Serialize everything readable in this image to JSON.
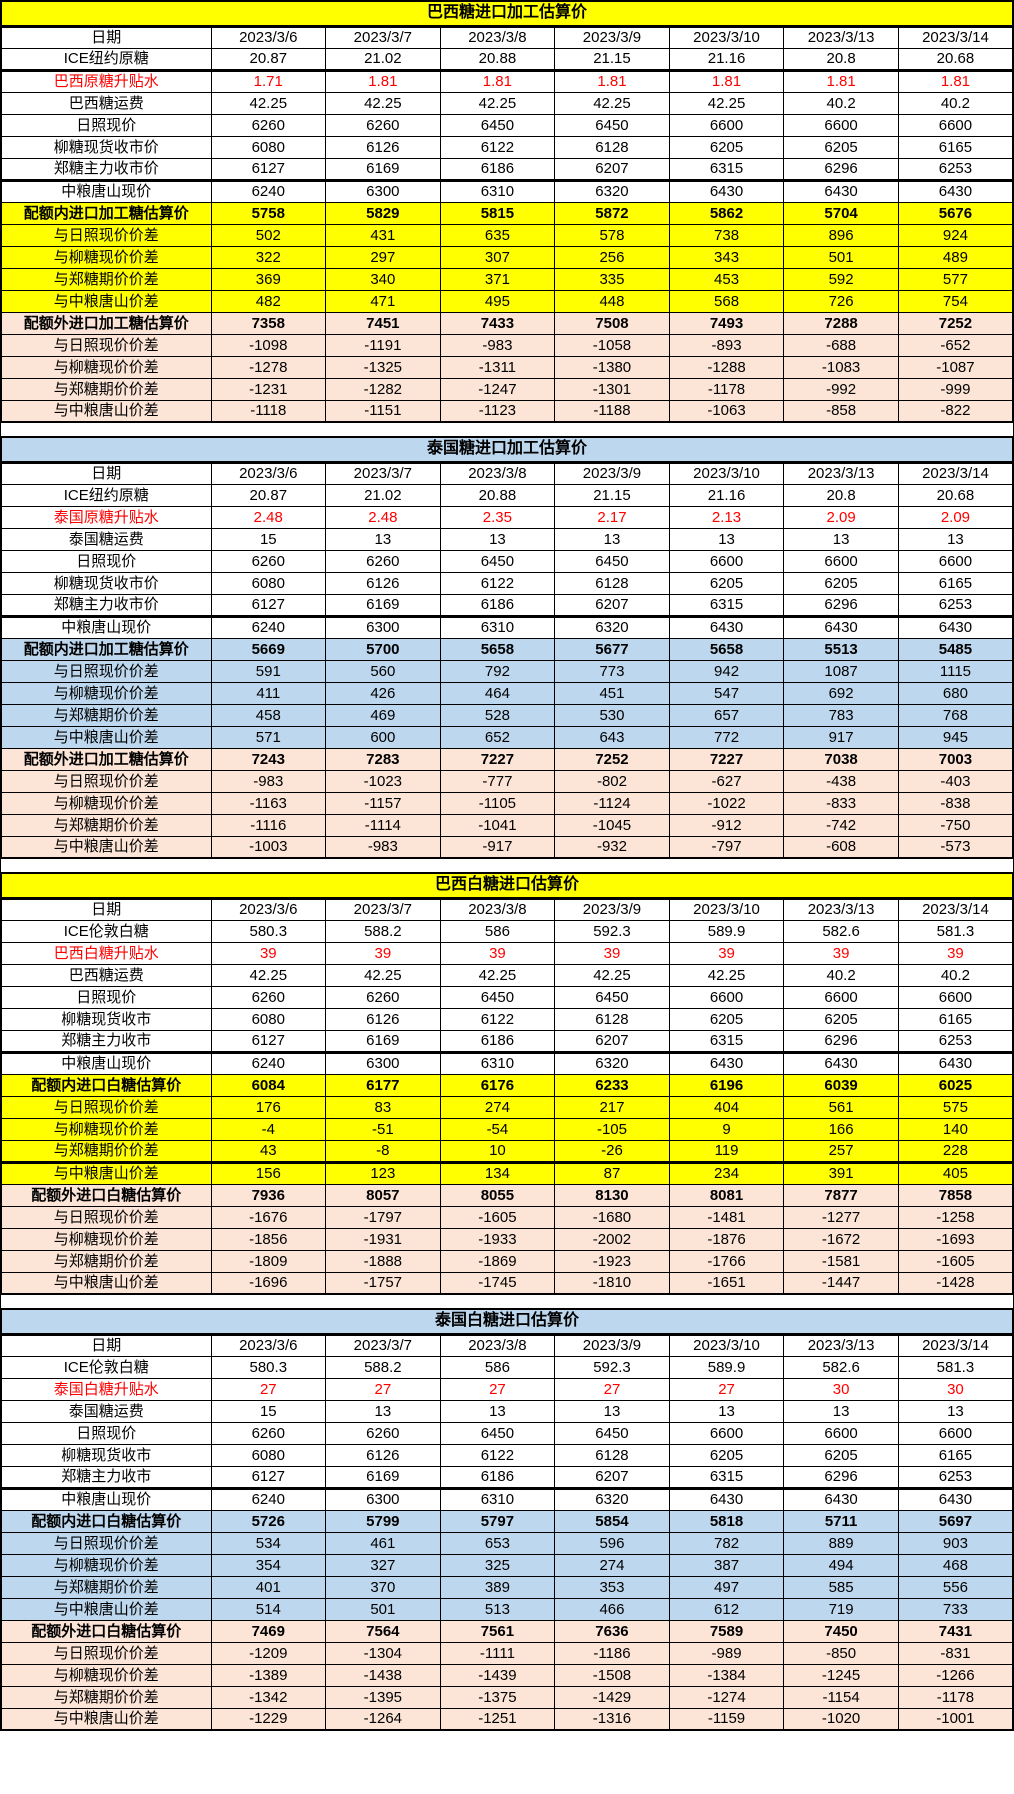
{
  "colors": {
    "title_yellow": "#FFFF00",
    "title_blue": "#BDD7EE",
    "quota_out_peach": "#FCE4D6",
    "premium_red": "#FF0000",
    "grid_black": "#000000",
    "background_white": "#FFFFFF"
  },
  "date_label": "日期",
  "dates": [
    "2023/3/6",
    "2023/3/7",
    "2023/3/8",
    "2023/3/9",
    "2023/3/10",
    "2023/3/13",
    "2023/3/14"
  ],
  "tables": [
    {
      "title": "巴西糖进口加工估算价",
      "theme": "yellow",
      "rows": [
        {
          "label": "ICE纽约原糖",
          "style": "plain",
          "values": [
            20.87,
            21.02,
            20.88,
            21.15,
            21.16,
            20.8,
            20.68
          ]
        },
        {
          "label": "巴西原糖升贴水",
          "style": "premium",
          "values": [
            1.71,
            1.81,
            1.81,
            1.81,
            1.81,
            1.81,
            1.81
          ]
        },
        {
          "label": "巴西糖运费",
          "style": "plain",
          "values": [
            42.25,
            42.25,
            42.25,
            42.25,
            42.25,
            40.2,
            40.2
          ]
        },
        {
          "label": "日照现价",
          "style": "plain",
          "values": [
            6260,
            6260,
            6450,
            6450,
            6600,
            6600,
            6600
          ]
        },
        {
          "label": "柳糖现货收市价",
          "style": "plain",
          "values": [
            6080,
            6126,
            6122,
            6128,
            6205,
            6205,
            6165
          ]
        },
        {
          "label": "郑糖主力收市价",
          "style": "plain",
          "values": [
            6127,
            6169,
            6186,
            6207,
            6315,
            6296,
            6253
          ]
        },
        {
          "label": "中粮唐山现价",
          "style": "plain",
          "values": [
            6240,
            6300,
            6310,
            6320,
            6430,
            6430,
            6430
          ]
        },
        {
          "label": "配额内进口加工糖估算价",
          "style": "quota-in-head",
          "values": [
            5758,
            5829,
            5815,
            5872,
            5862,
            5704,
            5676
          ]
        },
        {
          "label": "与日照现价价差",
          "style": "quota-in",
          "values": [
            502,
            431,
            635,
            578,
            738,
            896,
            924
          ]
        },
        {
          "label": "与柳糖现价价差",
          "style": "quota-in",
          "values": [
            322,
            297,
            307,
            256,
            343,
            501,
            489
          ]
        },
        {
          "label": "与郑糖期价价差",
          "style": "quota-in",
          "values": [
            369,
            340,
            371,
            335,
            453,
            592,
            577
          ]
        },
        {
          "label": "与中粮唐山价差",
          "style": "quota-in",
          "values": [
            482,
            471,
            495,
            448,
            568,
            726,
            754
          ]
        },
        {
          "label": "配额外进口加工糖估算价",
          "style": "quota-out-head",
          "values": [
            7358,
            7451,
            7433,
            7508,
            7493,
            7288,
            7252
          ]
        },
        {
          "label": "与日照现价价差",
          "style": "quota-out",
          "values": [
            -1098,
            -1191,
            -983,
            -1058,
            -893,
            -688,
            -652
          ]
        },
        {
          "label": "与柳糖现价价差",
          "style": "quota-out",
          "values": [
            -1278,
            -1325,
            -1311,
            -1380,
            -1288,
            -1083,
            -1087
          ]
        },
        {
          "label": "与郑糖期价价差",
          "style": "quota-out",
          "values": [
            -1231,
            -1282,
            -1247,
            -1301,
            -1178,
            -992,
            -999
          ]
        },
        {
          "label": "与中粮唐山价差",
          "style": "quota-out",
          "values": [
            -1118,
            -1151,
            -1123,
            -1188,
            -1063,
            -858,
            -822
          ]
        }
      ]
    },
    {
      "title": "泰国糖进口加工估算价",
      "theme": "blue",
      "rows": [
        {
          "label": "ICE纽约原糖",
          "style": "plain",
          "values": [
            20.87,
            21.02,
            20.88,
            21.15,
            21.16,
            20.8,
            20.68
          ]
        },
        {
          "label": "泰国原糖升贴水",
          "style": "premium",
          "values": [
            2.48,
            2.48,
            2.35,
            2.17,
            2.13,
            2.09,
            2.09
          ]
        },
        {
          "label": "泰国糖运费",
          "style": "plain",
          "values": [
            15,
            13,
            13,
            13,
            13,
            13,
            13
          ]
        },
        {
          "label": "日照现价",
          "style": "plain",
          "values": [
            6260,
            6260,
            6450,
            6450,
            6600,
            6600,
            6600
          ]
        },
        {
          "label": "柳糖现货收市价",
          "style": "plain",
          "values": [
            6080,
            6126,
            6122,
            6128,
            6205,
            6205,
            6165
          ]
        },
        {
          "label": "郑糖主力收市价",
          "style": "plain",
          "values": [
            6127,
            6169,
            6186,
            6207,
            6315,
            6296,
            6253
          ]
        },
        {
          "label": "中粮唐山现价",
          "style": "plain",
          "values": [
            6240,
            6300,
            6310,
            6320,
            6430,
            6430,
            6430
          ]
        },
        {
          "label": "配额内进口加工糖估算价",
          "style": "quota-in-head",
          "values": [
            5669,
            5700,
            5658,
            5677,
            5658,
            5513,
            5485
          ]
        },
        {
          "label": "与日照现价价差",
          "style": "quota-in",
          "values": [
            591,
            560,
            792,
            773,
            942,
            1087,
            1115
          ]
        },
        {
          "label": "与柳糖现价价差",
          "style": "quota-in",
          "values": [
            411,
            426,
            464,
            451,
            547,
            692,
            680
          ]
        },
        {
          "label": "与郑糖期价价差",
          "style": "quota-in",
          "values": [
            458,
            469,
            528,
            530,
            657,
            783,
            768
          ]
        },
        {
          "label": "与中粮唐山价差",
          "style": "quota-in",
          "values": [
            571,
            600,
            652,
            643,
            772,
            917,
            945
          ]
        },
        {
          "label": "配额外进口加工糖估算价",
          "style": "quota-out-head",
          "values": [
            7243,
            7283,
            7227,
            7252,
            7227,
            7038,
            7003
          ]
        },
        {
          "label": "与日照现价价差",
          "style": "quota-out",
          "values": [
            -983,
            -1023,
            -777,
            -802,
            -627,
            -438,
            -403
          ]
        },
        {
          "label": "与柳糖现价价差",
          "style": "quota-out",
          "values": [
            -1163,
            -1157,
            -1105,
            -1124,
            -1022,
            -833,
            -838
          ]
        },
        {
          "label": "与郑糖期价价差",
          "style": "quota-out",
          "values": [
            -1116,
            -1114,
            -1041,
            -1045,
            -912,
            -742,
            -750
          ]
        },
        {
          "label": "与中粮唐山价差",
          "style": "quota-out",
          "values": [
            -1003,
            -983,
            -917,
            -932,
            -797,
            -608,
            -573
          ]
        }
      ]
    },
    {
      "title": "巴西白糖进口估算价",
      "theme": "yellow",
      "rows": [
        {
          "label": "ICE伦敦白糖",
          "style": "plain",
          "values": [
            580.3,
            588.2,
            586,
            592.3,
            589.9,
            582.6,
            581.3
          ]
        },
        {
          "label": "巴西白糖升贴水",
          "style": "premium",
          "values": [
            39,
            39,
            39,
            39,
            39,
            39,
            39
          ]
        },
        {
          "label": "巴西糖运费",
          "style": "plain",
          "values": [
            42.25,
            42.25,
            42.25,
            42.25,
            42.25,
            40.2,
            40.2
          ]
        },
        {
          "label": "日照现价",
          "style": "plain",
          "values": [
            6260,
            6260,
            6450,
            6450,
            6600,
            6600,
            6600
          ]
        },
        {
          "label": "柳糖现货收市",
          "style": "plain",
          "values": [
            6080,
            6126,
            6122,
            6128,
            6205,
            6205,
            6165
          ]
        },
        {
          "label": "郑糖主力收市",
          "style": "plain",
          "values": [
            6127,
            6169,
            6186,
            6207,
            6315,
            6296,
            6253
          ]
        },
        {
          "label": "中粮唐山现价",
          "style": "plain",
          "values": [
            6240,
            6300,
            6310,
            6320,
            6430,
            6430,
            6430
          ]
        },
        {
          "label": "配额内进口白糖估算价",
          "style": "quota-in-head",
          "values": [
            6084,
            6177,
            6176,
            6233,
            6196,
            6039,
            6025
          ]
        },
        {
          "label": "与日照现价价差",
          "style": "quota-in",
          "values": [
            176,
            83,
            274,
            217,
            404,
            561,
            575
          ]
        },
        {
          "label": "与柳糖现价价差",
          "style": "quota-in",
          "values": [
            -4,
            -51,
            -54,
            -105,
            9,
            166,
            140
          ]
        },
        {
          "label": "与郑糖期价价差",
          "style": "quota-in",
          "values": [
            43,
            -8,
            10,
            -26,
            119,
            257,
            228
          ]
        },
        {
          "label": "与中粮唐山价差",
          "style": "quota-in",
          "values": [
            156,
            123,
            134,
            87,
            234,
            391,
            405
          ]
        },
        {
          "label": "配额外进口白糖估算价",
          "style": "quota-out-head",
          "values": [
            7936,
            8057,
            8055,
            8130,
            8081,
            7877,
            7858
          ]
        },
        {
          "label": "与日照现价价差",
          "style": "quota-out",
          "values": [
            -1676,
            -1797,
            -1605,
            -1680,
            -1481,
            -1277,
            -1258
          ]
        },
        {
          "label": "与柳糖现价价差",
          "style": "quota-out",
          "values": [
            -1856,
            -1931,
            -1933,
            -2002,
            -1876,
            -1672,
            -1693
          ]
        },
        {
          "label": "与郑糖期价价差",
          "style": "quota-out",
          "values": [
            -1809,
            -1888,
            -1869,
            -1923,
            -1766,
            -1581,
            -1605
          ]
        },
        {
          "label": "与中粮唐山价差",
          "style": "quota-out",
          "values": [
            -1696,
            -1757,
            -1745,
            -1810,
            -1651,
            -1447,
            -1428
          ]
        }
      ]
    },
    {
      "title": "泰国白糖进口估算价",
      "theme": "blue",
      "rows": [
        {
          "label": "ICE伦敦白糖",
          "style": "plain",
          "values": [
            580.3,
            588.2,
            586,
            592.3,
            589.9,
            582.6,
            581.3
          ]
        },
        {
          "label": "泰国白糖升贴水",
          "style": "premium",
          "values": [
            27,
            27,
            27,
            27,
            27,
            30,
            30
          ]
        },
        {
          "label": "泰国糖运费",
          "style": "plain",
          "values": [
            15,
            13,
            13,
            13,
            13,
            13,
            13
          ]
        },
        {
          "label": "日照现价",
          "style": "plain",
          "values": [
            6260,
            6260,
            6450,
            6450,
            6600,
            6600,
            6600
          ]
        },
        {
          "label": "柳糖现货收市",
          "style": "plain",
          "values": [
            6080,
            6126,
            6122,
            6128,
            6205,
            6205,
            6165
          ]
        },
        {
          "label": "郑糖主力收市",
          "style": "plain",
          "values": [
            6127,
            6169,
            6186,
            6207,
            6315,
            6296,
            6253
          ]
        },
        {
          "label": "中粮唐山现价",
          "style": "plain",
          "values": [
            6240,
            6300,
            6310,
            6320,
            6430,
            6430,
            6430
          ]
        },
        {
          "label": "配额内进口白糖估算价",
          "style": "quota-in-head",
          "values": [
            5726,
            5799,
            5797,
            5854,
            5818,
            5711,
            5697
          ]
        },
        {
          "label": "与日照现价价差",
          "style": "quota-in",
          "values": [
            534,
            461,
            653,
            596,
            782,
            889,
            903
          ]
        },
        {
          "label": "与柳糖现价价差",
          "style": "quota-in",
          "values": [
            354,
            327,
            325,
            274,
            387,
            494,
            468
          ]
        },
        {
          "label": "与郑糖期价价差",
          "style": "quota-in",
          "values": [
            401,
            370,
            389,
            353,
            497,
            585,
            556
          ]
        },
        {
          "label": "与中粮唐山价差",
          "style": "quota-in",
          "values": [
            514,
            501,
            513,
            466,
            612,
            719,
            733
          ]
        },
        {
          "label": "配额外进口白糖估算价",
          "style": "quota-out-head",
          "values": [
            7469,
            7564,
            7561,
            7636,
            7589,
            7450,
            7431
          ]
        },
        {
          "label": "与日照现价价差",
          "style": "quota-out",
          "values": [
            -1209,
            -1304,
            -1111,
            -1186,
            -989,
            -850,
            -831
          ]
        },
        {
          "label": "与柳糖现价价差",
          "style": "quota-out",
          "values": [
            -1389,
            -1438,
            -1439,
            -1508,
            -1384,
            -1245,
            -1266
          ]
        },
        {
          "label": "与郑糖期价价差",
          "style": "quota-out",
          "values": [
            -1342,
            -1395,
            -1375,
            -1429,
            -1274,
            -1154,
            -1178
          ]
        },
        {
          "label": "与中粮唐山价差",
          "style": "quota-out",
          "values": [
            -1229,
            -1264,
            -1251,
            -1316,
            -1159,
            -1020,
            -1001
          ]
        }
      ]
    }
  ]
}
